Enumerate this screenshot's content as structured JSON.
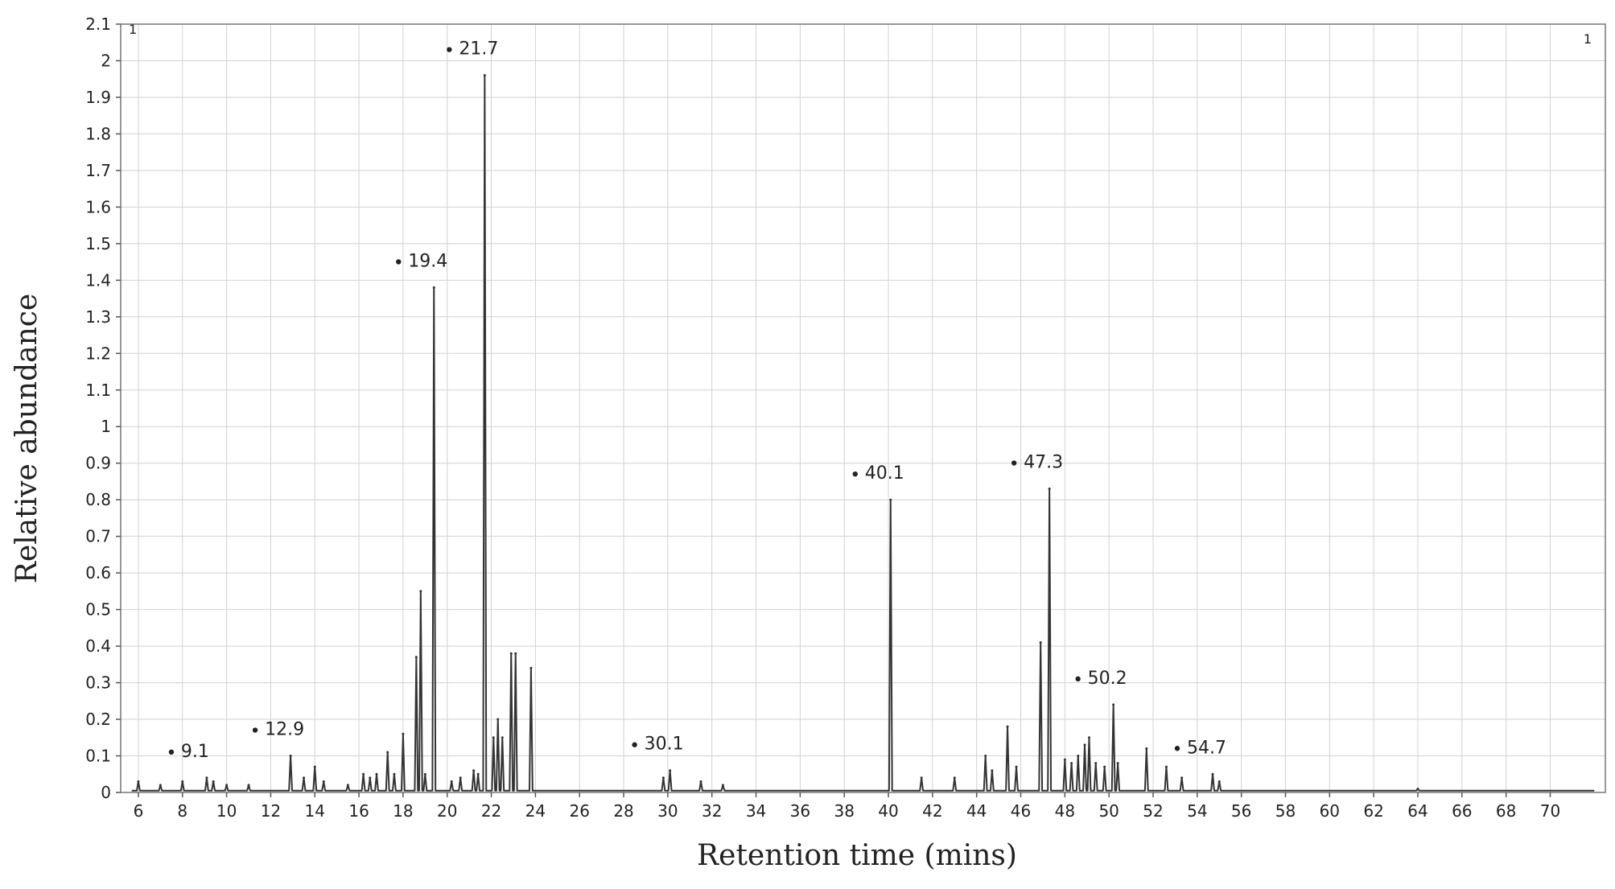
{
  "chart_data": {
    "type": "line",
    "xlabel": "Retention time (mins)",
    "ylabel": "Relative abundance",
    "xlim": [
      5.2,
      72.5
    ],
    "ylim": [
      0,
      2.1
    ],
    "x_ticks": [
      "6",
      "8",
      "10",
      "12",
      "14",
      "16",
      "18",
      "20",
      "22",
      "24",
      "26",
      "28",
      "30",
      "32",
      "34",
      "36",
      "38",
      "40",
      "42",
      "44",
      "46",
      "48",
      "50",
      "52",
      "54",
      "56",
      "58",
      "60",
      "62",
      "64",
      "66",
      "68",
      "70"
    ],
    "y_ticks": [
      "0",
      "0.1",
      "0.2",
      "0.3",
      "0.4",
      "0.5",
      "0.6",
      "0.7",
      "0.8",
      "0.9",
      "1",
      "1.1",
      "1.2",
      "1.3",
      "1.4",
      "1.5",
      "1.6",
      "1.7",
      "1.8",
      "1.9",
      "2",
      "2.1"
    ],
    "corner_labels": [
      "1",
      "1"
    ],
    "grid": true,
    "series": [
      {
        "x": [
          6.0,
          7.0,
          8.0,
          9.1,
          9.4,
          10.0,
          11.0,
          12.9,
          13.5,
          14.0,
          14.4,
          15.5,
          16.2,
          16.5,
          16.8,
          17.3,
          17.6,
          18.0,
          18.6,
          18.8,
          19.0,
          19.4,
          20.2,
          20.6,
          21.2,
          21.4,
          21.7,
          22.1,
          22.3,
          22.5,
          22.9,
          23.1,
          23.8,
          29.8,
          30.1,
          31.5,
          32.5,
          40.1,
          41.5,
          43.0,
          44.4,
          44.7,
          45.4,
          45.8,
          46.9,
          47.3,
          48.0,
          48.3,
          48.6,
          48.9,
          49.1,
          49.4,
          49.8,
          50.2,
          50.4,
          51.7,
          52.6,
          53.3,
          54.7,
          55.0,
          64.0
        ],
        "y": [
          0.03,
          0.02,
          0.03,
          0.04,
          0.03,
          0.02,
          0.02,
          0.1,
          0.04,
          0.07,
          0.03,
          0.02,
          0.05,
          0.04,
          0.05,
          0.11,
          0.05,
          0.16,
          0.37,
          0.55,
          0.05,
          1.38,
          0.03,
          0.04,
          0.06,
          0.05,
          1.96,
          0.15,
          0.2,
          0.15,
          0.38,
          0.38,
          0.34,
          0.04,
          0.06,
          0.03,
          0.02,
          0.8,
          0.04,
          0.04,
          0.1,
          0.06,
          0.18,
          0.07,
          0.41,
          0.83,
          0.09,
          0.08,
          0.1,
          0.13,
          0.15,
          0.08,
          0.07,
          0.24,
          0.08,
          0.12,
          0.07,
          0.04,
          0.05,
          0.03,
          0.01
        ]
      }
    ],
    "annotations": [
      {
        "x": 9.1,
        "y": 0.04,
        "text": "9.1"
      },
      {
        "x": 12.9,
        "y": 0.1,
        "text": "12.9"
      },
      {
        "x": 19.4,
        "y": 1.38,
        "text": "19.4"
      },
      {
        "x": 21.7,
        "y": 1.96,
        "text": "21.7"
      },
      {
        "x": 30.1,
        "y": 0.06,
        "text": "30.1"
      },
      {
        "x": 40.1,
        "y": 0.8,
        "text": "40.1"
      },
      {
        "x": 47.3,
        "y": 0.83,
        "text": "47.3"
      },
      {
        "x": 50.2,
        "y": 0.24,
        "text": "50.2"
      },
      {
        "x": 54.7,
        "y": 0.05,
        "text": "54.7"
      }
    ]
  }
}
